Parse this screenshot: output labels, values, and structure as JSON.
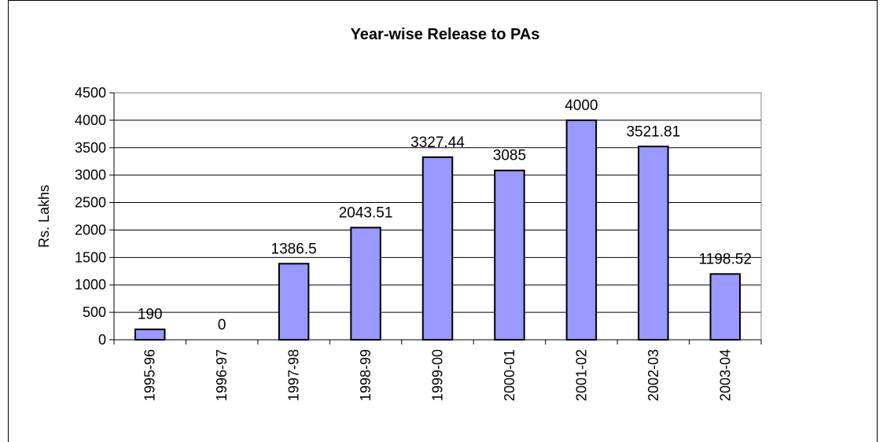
{
  "chart_data": {
    "type": "bar",
    "title": "Year-wise Release to PAs",
    "xlabel": "",
    "ylabel": "Rs. Lakhs",
    "categories": [
      "1995-96",
      "1996-97",
      "1997-98",
      "1998-99",
      "1999-00",
      "2000-01",
      "2001-02",
      "2002-03",
      "2003-04"
    ],
    "values": [
      190,
      0,
      1386.5,
      2043.51,
      3327.44,
      3085,
      4000,
      3521.81,
      1198.52
    ],
    "data_labels": [
      "190",
      "0",
      "1386.5",
      "2043.51",
      "3327.44",
      "3085",
      "4000",
      "3521.81",
      "1198.52"
    ],
    "ylim": [
      0,
      4500
    ],
    "yticks": [
      0,
      500,
      1000,
      1500,
      2000,
      2500,
      3000,
      3500,
      4000,
      4500
    ],
    "grid": true,
    "legend": "none",
    "colors": {
      "bar_fill": "#9999ff",
      "bar_stroke": "#000000",
      "plot_background": "#ffffff",
      "grid": "#000000"
    }
  }
}
